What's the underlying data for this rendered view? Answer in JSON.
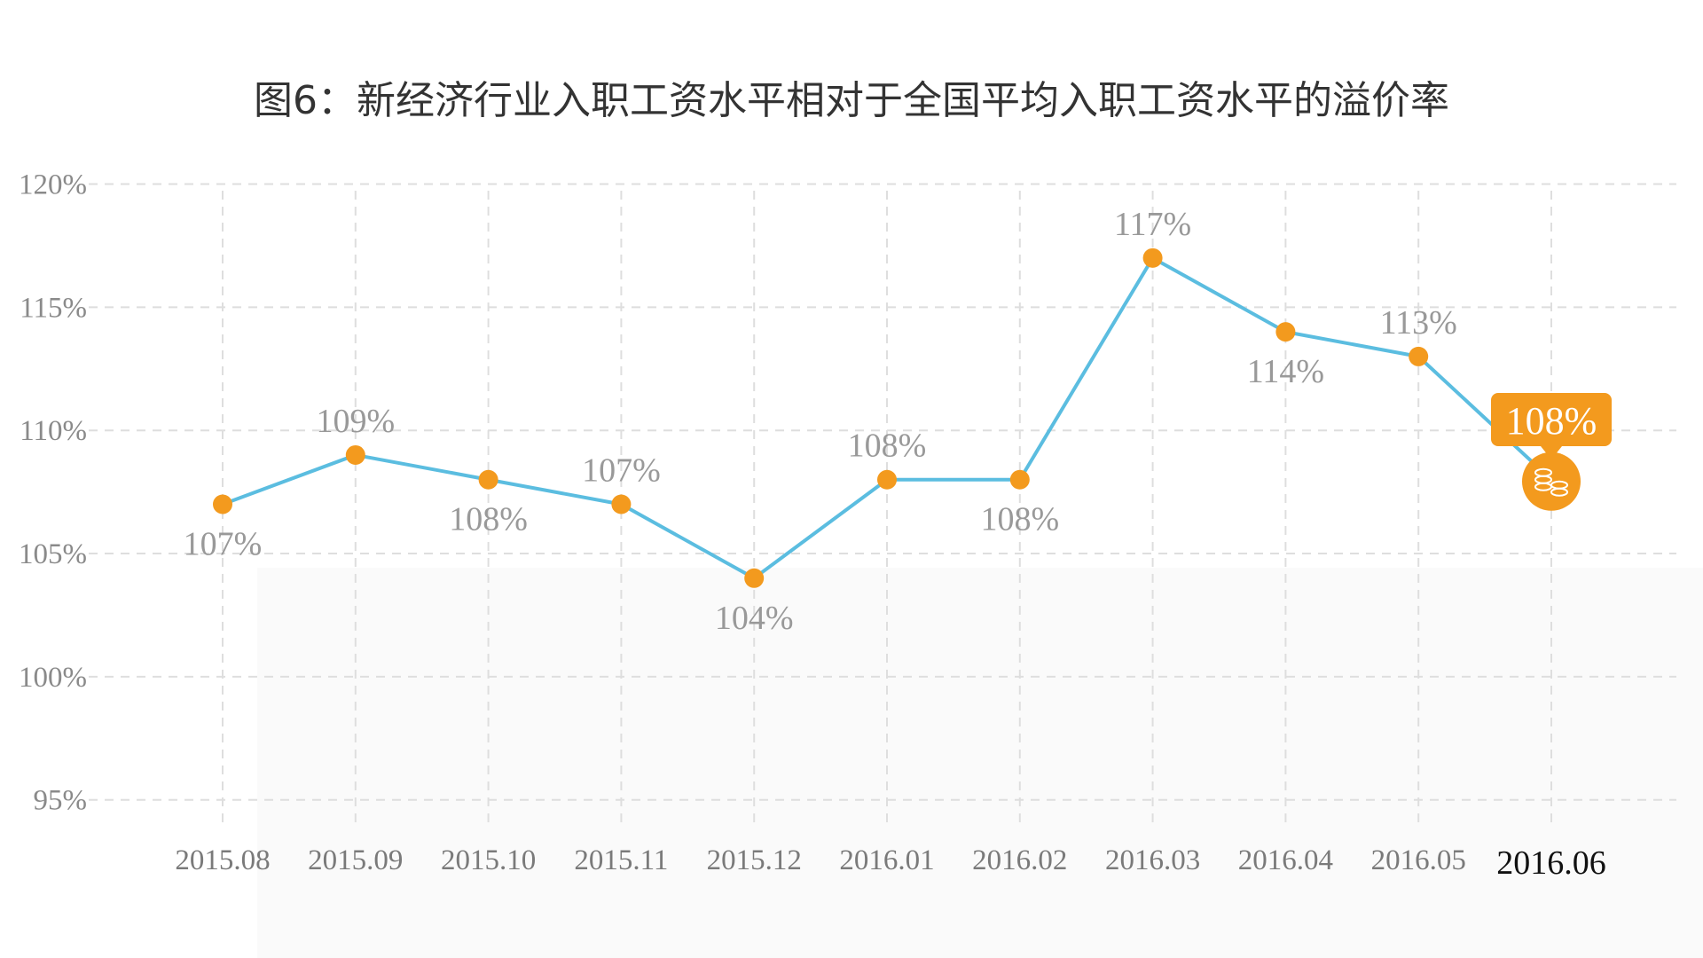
{
  "title": "图6：新经济行业入职工资水平相对于全国平均入职工资水平的溢价率",
  "colors": {
    "line": "#5bbde0",
    "marker": "#f39a1e",
    "callout": "#f39a1e",
    "grid": "#dedede"
  },
  "highlight": {
    "label": "108%",
    "icon": "coins-icon"
  },
  "chart_data": {
    "type": "line",
    "categories": [
      "2015.08",
      "2015.09",
      "2015.10",
      "2015.11",
      "2015.12",
      "2016.01",
      "2016.02",
      "2016.03",
      "2016.04",
      "2016.05",
      "2016.06"
    ],
    "series": [
      {
        "values": [
          107,
          109,
          108,
          107,
          104,
          108,
          108,
          117,
          114,
          113,
          108
        ]
      }
    ],
    "data_labels": [
      "107%",
      "109%",
      "108%",
      "107%",
      "104%",
      "108%",
      "108%",
      "117%",
      "114%",
      "113%",
      "108%"
    ],
    "y_ticks": [
      95,
      100,
      105,
      110,
      115,
      120
    ],
    "y_tick_labels": [
      "95%",
      "100%",
      "105%",
      "110%",
      "115%",
      "120%"
    ],
    "ylim": [
      92,
      122
    ],
    "grid": true,
    "xlabel": "",
    "ylabel": ""
  }
}
